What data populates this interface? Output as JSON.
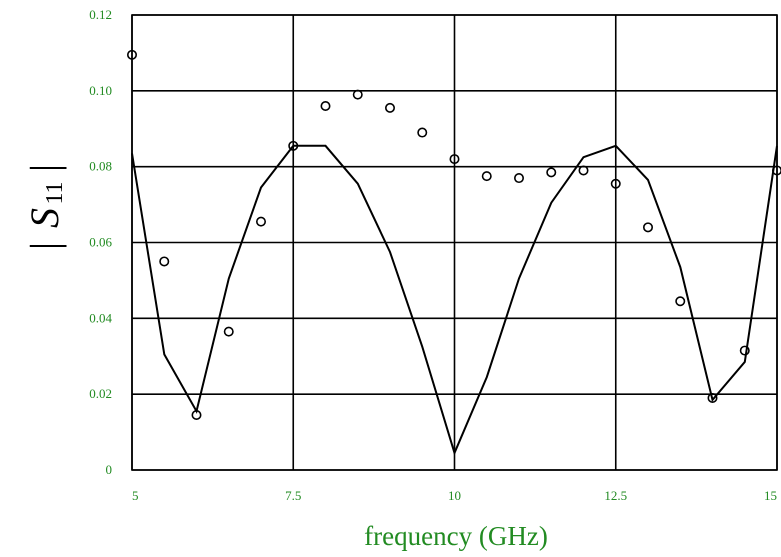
{
  "chart_data": {
    "type": "line",
    "xlabel": "frequency (GHz)",
    "ylabel": "S",
    "ylabel_subscript": "11",
    "xlim": [
      5,
      15
    ],
    "ylim": [
      0,
      0.12
    ],
    "x_ticks": [
      "5",
      "7.5",
      "10",
      "12.5",
      "15"
    ],
    "y_ticks": [
      "0",
      "0.02",
      "0.04",
      "0.06",
      "0.08",
      "0.10",
      "0.12"
    ],
    "grid": true,
    "tick_color": "#228B22",
    "label_color": "#228B22",
    "line_color": "#000000",
    "series": [
      {
        "style": "line",
        "x": [
          5.0,
          5.5,
          6.0,
          6.5,
          7.0,
          7.5,
          8.0,
          8.5,
          9.0,
          9.5,
          10.0,
          10.5,
          11.0,
          11.5,
          12.0,
          12.5,
          13.0,
          13.5,
          14.0,
          14.5,
          15.0
        ],
        "y": [
          0.0835,
          0.0305,
          0.0155,
          0.0505,
          0.0745,
          0.0855,
          0.0855,
          0.0755,
          0.0575,
          0.0325,
          0.0045,
          0.0245,
          0.0505,
          0.0705,
          0.0825,
          0.0855,
          0.0765,
          0.0535,
          0.0185,
          0.0285,
          0.0855
        ]
      },
      {
        "style": "markers",
        "x": [
          5.0,
          5.5,
          6.0,
          6.5,
          7.0,
          7.5,
          8.0,
          8.5,
          9.0,
          9.5,
          10.0,
          10.5,
          11.0,
          11.5,
          12.0,
          12.5,
          13.0,
          13.5,
          14.0,
          14.5,
          15.0
        ],
        "y": [
          0.1095,
          0.055,
          0.0145,
          0.0365,
          0.0655,
          0.0855,
          0.096,
          0.099,
          0.0955,
          0.089,
          0.082,
          0.0775,
          0.077,
          0.0785,
          0.079,
          0.0755,
          0.064,
          0.0445,
          0.019,
          0.0315,
          0.079
        ]
      }
    ]
  }
}
